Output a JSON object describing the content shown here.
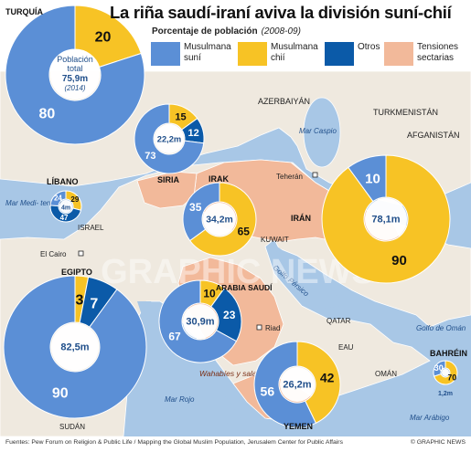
{
  "title": "La riña saudí-iraní aviva la división suní-chií",
  "subtitle": "Porcentaje de población",
  "subtitle_years": "(2008-09)",
  "legend": {
    "suni": {
      "label": "Musulmana suní",
      "color": "#5b8fd6"
    },
    "chii": {
      "label": "Musulmana chií",
      "color": "#f7c325"
    },
    "otros": {
      "label": "Otros",
      "color": "#0b5aa8"
    },
    "tensiones": {
      "label": "Tensiones sectarias",
      "color": "#f2b99a"
    }
  },
  "colors": {
    "sea": "#a8c7e6",
    "land": "#efe9df",
    "tension": "#f2b99a",
    "border": "#ffffff",
    "suni": "#5b8fd6",
    "chii": "#f7c325",
    "otros": "#0b5aa8"
  },
  "countries": {
    "turquia": {
      "name": "TURQUÍA",
      "population": "75,9m",
      "population_label": "Población total",
      "population_year": "(2014)",
      "suni": 80,
      "chii": 20,
      "otros": 0
    },
    "siria": {
      "name": "SIRIA",
      "population": "22,2m",
      "suni": 73,
      "chii": 15,
      "otros": 12
    },
    "libano": {
      "name": "LÍBANO",
      "population": "4m",
      "suni": 24,
      "chii": 29,
      "otros": 47
    },
    "irak": {
      "name": "IRAK",
      "population": "34,2m",
      "suni": 35,
      "chii": 65,
      "otros": 0
    },
    "iran": {
      "name": "IRÁN",
      "population": "78,1m",
      "suni": 10,
      "chii": 90,
      "otros": 0
    },
    "egipto": {
      "name": "EGIPTO",
      "population": "82,5m",
      "suni": 90,
      "chii": 3,
      "otros": 7
    },
    "arabia_saudi": {
      "name": "ARABIA SAUDÍ",
      "population": "30,9m",
      "suni": 67,
      "chii": 10,
      "otros": 23
    },
    "yemen": {
      "name": "YEMEN",
      "population": "26,2m",
      "suni": 56,
      "chii": 42,
      "otros": 0
    },
    "bahrein": {
      "name": "BAHRÉIN",
      "population": "1,2m",
      "suni": 30,
      "chii": 70,
      "otros": 0
    }
  },
  "places": {
    "azerbaiyan": "AZERBAIYÁN",
    "turkmenistan": "TURKMENISTÁN",
    "afganistan": "AFGANISTÁN",
    "mar_caspio": "Mar Caspio",
    "teheran": "Teherán",
    "kuwait": "KUWAIT",
    "golfo_persico": "Golfo Pérsico",
    "qatar": "QATAR",
    "eau": "EAU",
    "oman": "OMÁN",
    "golfo_oman": "Golfo de Omán",
    "mar_arabigo": "Mar Arábigo",
    "mar_rojo": "Mar Rojo",
    "mar_mediterraneo": "Mar Medi- terráneo",
    "israel": "ISRAEL",
    "el_cairo": "El Cairo",
    "riad": "Riad",
    "sudan": "SUDÁN",
    "wahabies": "Wahabíes y salafíes"
  },
  "watermark": "GRAPHIC NEWS",
  "footer": "Fuentes: Pew Forum on Religion & Public Life / Mapping the Global Muslim Population, Jerusalem Center for Public Affairs",
  "credit": "© GRAPHIC NEWS"
}
